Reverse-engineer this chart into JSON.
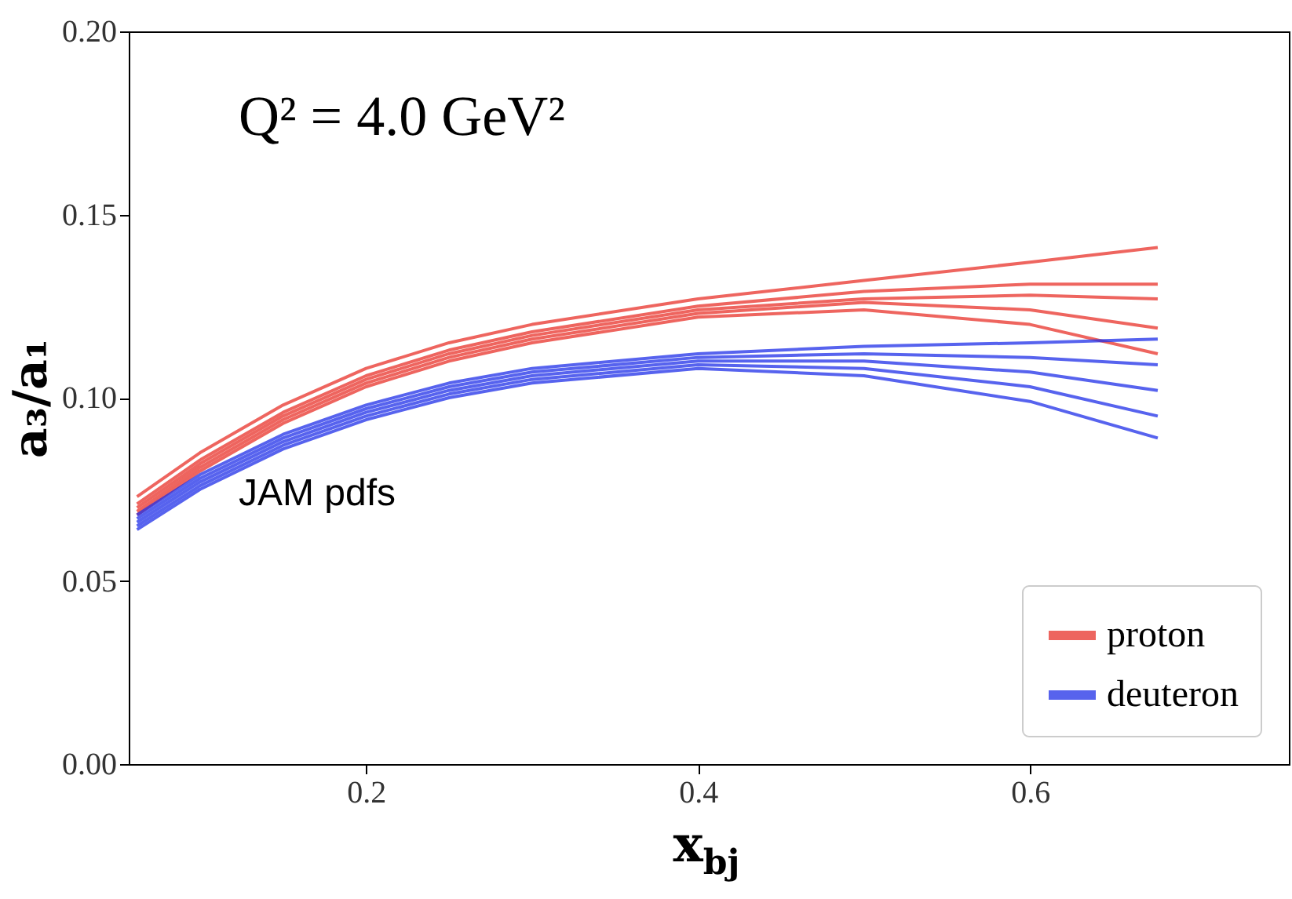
{
  "chart_data": {
    "type": "line",
    "xlabel": "x$_{bj}$",
    "ylabel": "a₃/a₁",
    "annotations": [
      "Q² = 4.0 GeV²",
      "JAM pdfs"
    ],
    "x": [
      0.062,
      0.1,
      0.15,
      0.2,
      0.25,
      0.3,
      0.4,
      0.5,
      0.6,
      0.677
    ],
    "series": [
      {
        "name": "proton",
        "color": "#e8322a",
        "values": [
          0.07,
          0.082,
          0.095,
          0.105,
          0.112,
          0.117,
          0.124,
          0.127,
          0.128,
          0.127
        ]
      },
      {
        "color": "#e8322a",
        "values": [
          0.073,
          0.085,
          0.098,
          0.108,
          0.115,
          0.12,
          0.127,
          0.132,
          0.137,
          0.141
        ]
      },
      {
        "color": "#e8322a",
        "values": [
          0.068,
          0.08,
          0.093,
          0.103,
          0.11,
          0.115,
          0.122,
          0.124,
          0.12,
          0.112
        ]
      },
      {
        "color": "#e8322a",
        "values": [
          0.071,
          0.083,
          0.096,
          0.106,
          0.113,
          0.118,
          0.125,
          0.129,
          0.131,
          0.131
        ]
      },
      {
        "color": "#e8322a",
        "values": [
          0.069,
          0.081,
          0.094,
          0.104,
          0.111,
          0.116,
          0.123,
          0.126,
          0.124,
          0.119
        ]
      },
      {
        "name": "deuteron",
        "color": "#1f2fe8",
        "values": [
          0.066,
          0.077,
          0.088,
          0.096,
          0.102,
          0.106,
          0.11,
          0.11,
          0.107,
          0.102
        ]
      },
      {
        "color": "#1f2fe8",
        "values": [
          0.068,
          0.079,
          0.09,
          0.098,
          0.104,
          0.108,
          0.112,
          0.114,
          0.115,
          0.116
        ]
      },
      {
        "color": "#1f2fe8",
        "values": [
          0.064,
          0.075,
          0.086,
          0.094,
          0.1,
          0.104,
          0.108,
          0.106,
          0.099,
          0.089
        ]
      },
      {
        "color": "#1f2fe8",
        "values": [
          0.067,
          0.078,
          0.089,
          0.097,
          0.103,
          0.107,
          0.111,
          0.112,
          0.111,
          0.109
        ]
      },
      {
        "color": "#1f2fe8",
        "values": [
          0.065,
          0.076,
          0.087,
          0.095,
          0.101,
          0.105,
          0.109,
          0.108,
          0.103,
          0.095
        ]
      }
    ],
    "xlim": [
      0.057,
      0.756
    ],
    "xticks": [
      0.2,
      0.4,
      0.6
    ],
    "ylim": [
      0,
      0.2
    ],
    "yticks": [
      {
        "value": 0,
        "label": "0.00"
      },
      0.05,
      {
        "value": 0.1,
        "label": "0.10"
      },
      0.15,
      {
        "value": 0.2,
        "label": "0.20"
      }
    ],
    "grid": false,
    "legend": "bottom right",
    "marker": "none",
    "line_style": "solid"
  }
}
